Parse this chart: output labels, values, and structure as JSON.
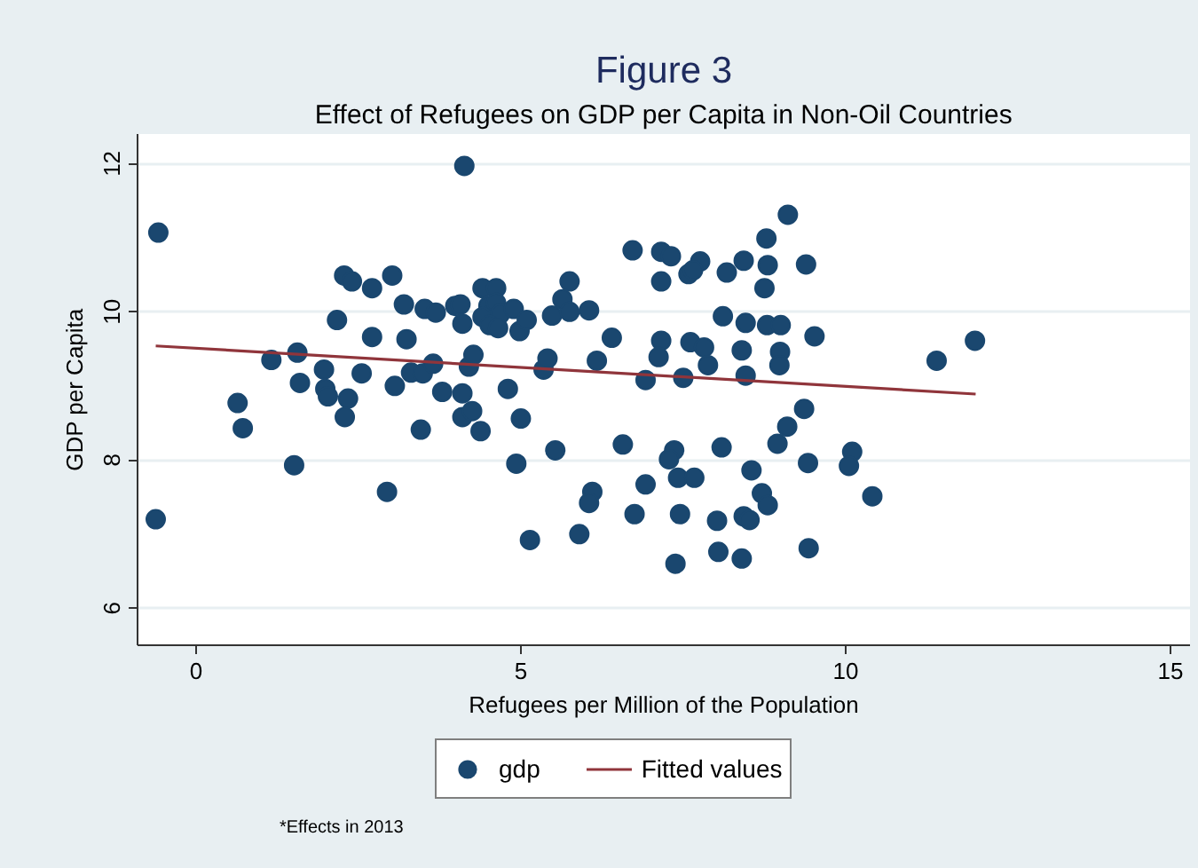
{
  "chart_data": {
    "type": "scatter",
    "title": "Figure 3",
    "subtitle": "Effect of Refugees on GDP per Capita in Non-Oil Countries",
    "xlabel": "Refugees per Million of the Population",
    "ylabel": "GDP per Capita",
    "annotations": [
      "*Effects in 2013"
    ],
    "xlim": [
      -0.9,
      15.3
    ],
    "ylim": [
      5.5,
      12.4
    ],
    "xticks": [
      0,
      5,
      10,
      15
    ],
    "yticks": [
      6,
      8,
      10,
      12
    ],
    "grid": "y",
    "legend": "bottom",
    "series": [
      {
        "name": "gdp",
        "color": "#1a476f",
        "marker": "circle",
        "x": [
          -0.58,
          -0.62,
          0.64,
          0.72,
          1.16,
          1.56,
          1.6,
          1.51,
          1.97,
          1.99,
          2.03,
          2.17,
          2.28,
          2.4,
          2.34,
          2.29,
          2.55,
          2.71,
          2.71,
          3.02,
          3.06,
          2.94,
          3.2,
          3.24,
          3.31,
          3.52,
          3.69,
          3.49,
          3.65,
          3.46,
          3.79,
          3.99,
          4.07,
          4.1,
          4.13,
          4.1,
          4.1,
          4.2,
          4.27,
          4.25,
          4.38,
          4.41,
          4.62,
          4.5,
          4.62,
          4.68,
          4.41,
          4.52,
          4.65,
          4.89,
          4.98,
          5.09,
          4.8,
          5.0,
          4.93,
          5.14,
          5.35,
          5.41,
          5.53,
          5.48,
          5.64,
          5.75,
          5.75,
          6.05,
          6.17,
          6.4,
          6.1,
          6.05,
          5.9,
          6.57,
          6.72,
          6.92,
          6.92,
          6.75,
          7.16,
          7.31,
          7.16,
          7.16,
          7.12,
          7.5,
          7.36,
          7.28,
          7.42,
          7.67,
          7.45,
          7.38,
          7.58,
          7.76,
          7.65,
          7.61,
          7.82,
          7.88,
          8.11,
          8.17,
          8.43,
          8.46,
          8.4,
          8.46,
          8.09,
          8.02,
          8.04,
          8.4,
          8.55,
          8.43,
          8.52,
          8.71,
          8.8,
          8.75,
          8.78,
          8.8,
          8.79,
          9.0,
          8.99,
          8.98,
          9.11,
          9.39,
          9.52,
          8.95,
          9.1,
          9.36,
          9.42,
          9.43,
          11.4,
          11.99,
          10.1,
          10.05,
          10.41
        ],
        "values": [
          11.07,
          7.2,
          8.77,
          8.43,
          9.35,
          9.45,
          9.04,
          7.93,
          9.22,
          8.96,
          8.86,
          9.89,
          10.49,
          10.41,
          8.83,
          8.58,
          9.17,
          10.32,
          9.66,
          10.49,
          9.0,
          7.57,
          10.1,
          9.63,
          9.18,
          10.04,
          9.99,
          9.17,
          9.3,
          8.41,
          8.92,
          10.08,
          10.1,
          9.84,
          11.97,
          8.9,
          8.58,
          9.26,
          9.42,
          8.66,
          8.39,
          10.32,
          10.32,
          10.08,
          10.12,
          9.97,
          9.93,
          9.82,
          9.78,
          10.04,
          9.74,
          9.89,
          8.96,
          8.56,
          7.95,
          6.92,
          9.22,
          9.37,
          8.13,
          9.95,
          10.17,
          10.41,
          10.0,
          10.02,
          9.34,
          9.65,
          7.57,
          7.42,
          7.0,
          8.21,
          10.83,
          9.08,
          7.67,
          7.27,
          10.81,
          10.75,
          10.41,
          9.61,
          9.39,
          9.11,
          8.13,
          8.01,
          7.76,
          7.76,
          7.27,
          6.6,
          10.51,
          10.68,
          10.56,
          9.59,
          9.52,
          9.28,
          9.94,
          10.53,
          10.69,
          9.85,
          9.48,
          9.14,
          8.17,
          7.18,
          6.76,
          6.67,
          7.86,
          7.24,
          7.19,
          7.55,
          7.39,
          10.32,
          10.99,
          10.63,
          9.82,
          9.82,
          9.46,
          9.28,
          11.31,
          10.64,
          9.67,
          8.22,
          8.45,
          8.69,
          7.96,
          6.81,
          9.34,
          9.61,
          8.11,
          7.92,
          7.51
        ]
      },
      {
        "name": "Fitted values",
        "type": "line",
        "color": "#90353b",
        "x": [
          -0.62,
          12.0
        ],
        "values": [
          9.54,
          8.89
        ]
      }
    ]
  }
}
